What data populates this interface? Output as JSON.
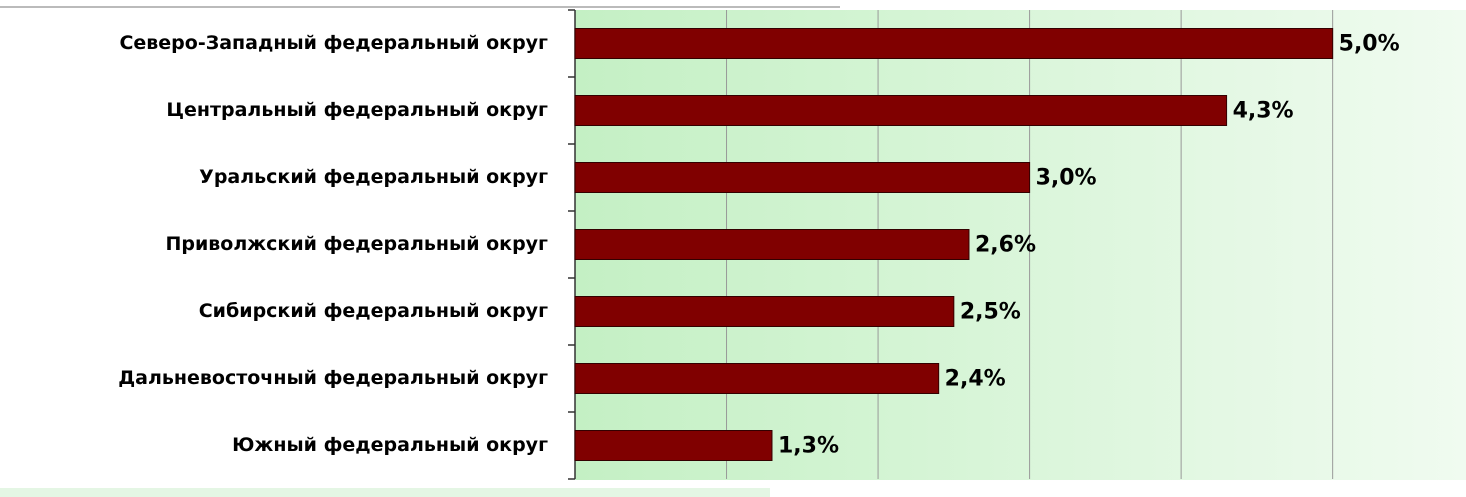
{
  "chart_data": {
    "type": "bar",
    "orientation": "horizontal",
    "categories": [
      "Северо-Западный федеральный округ",
      "Центральный федеральный округ",
      "Уральский федеральный округ",
      "Приволжский федеральный округ",
      "Сибирский федеральный округ",
      "Дальневосточный федеральный округ",
      "Южный федеральный округ"
    ],
    "values": [
      5.0,
      4.3,
      3.0,
      2.6,
      2.5,
      2.4,
      1.3
    ],
    "value_labels": [
      "5,0%",
      "4,3%",
      "3,0%",
      "2,6%",
      "2,5%",
      "2,4%",
      "1,3%"
    ],
    "color": "#800000",
    "xlim": [
      0,
      5.88
    ],
    "xticks": [
      0,
      1,
      2,
      3,
      4,
      5
    ],
    "grid": true
  }
}
